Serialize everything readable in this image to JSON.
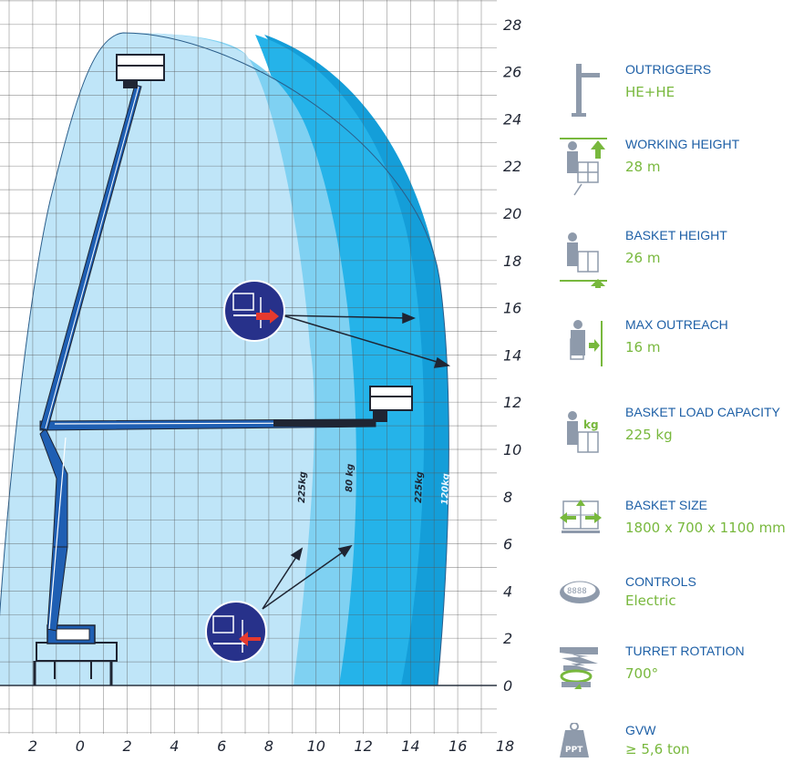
{
  "chart_data": {
    "type": "diagram",
    "x_ticks": [
      "2",
      "0",
      "2",
      "4",
      "6",
      "8",
      "10",
      "12",
      "14",
      "16",
      "18"
    ],
    "y_ticks": [
      "0",
      "2",
      "4",
      "6",
      "8",
      "10",
      "12",
      "14",
      "16",
      "18",
      "20",
      "22",
      "24",
      "26",
      "28"
    ],
    "xlim": [
      -2,
      18
    ],
    "ylim": [
      -1,
      28
    ],
    "grid": true,
    "zones": [
      {
        "label": "225kg",
        "color": "#bfe5f8"
      },
      {
        "label": "80 kg",
        "color": "#7fd1f2"
      },
      {
        "label": "225kg",
        "color": "#25b3e9"
      },
      {
        "label": "120kg",
        "color": "#149ed9"
      }
    ]
  },
  "specs": [
    {
      "icon": "outriggers-icon",
      "title": "OUTRIGGERS",
      "value": "HE+HE"
    },
    {
      "icon": "working-height-icon",
      "title": "WORKING HEIGHT",
      "value": "28 m"
    },
    {
      "icon": "basket-height-icon",
      "title": "BASKET HEIGHT",
      "value": "26 m"
    },
    {
      "icon": "max-outreach-icon",
      "title": "MAX OUTREACH",
      "value": "16 m"
    },
    {
      "icon": "basket-load-icon",
      "title": "BASKET LOAD CAPACITY",
      "value": "225 kg"
    },
    {
      "icon": "basket-size-icon",
      "title": "BASKET SIZE",
      "value": "1800 x 700 x 1100 mm"
    },
    {
      "icon": "controls-icon",
      "title": "CONTROLS",
      "value": "Electric"
    },
    {
      "icon": "turret-rotation-icon",
      "title": "TURRET ROTATION",
      "value": "700°"
    },
    {
      "icon": "gvw-icon",
      "title": "GVW",
      "value": "≥ 5,6 ton"
    }
  ],
  "icon_labels": {
    "kg": "kg",
    "ppt": "PPT",
    "controls": "8888"
  },
  "colors": {
    "accent": "#1d5fa6",
    "value": "#78b83d",
    "zone_light": "#bfe5f8",
    "zone_mid": "#7fd1f2",
    "zone_dark": "#25b3e9",
    "zone_deep": "#149ed9",
    "icon_gray": "#8e9aab",
    "machine_blue": "#1f5fb3"
  }
}
